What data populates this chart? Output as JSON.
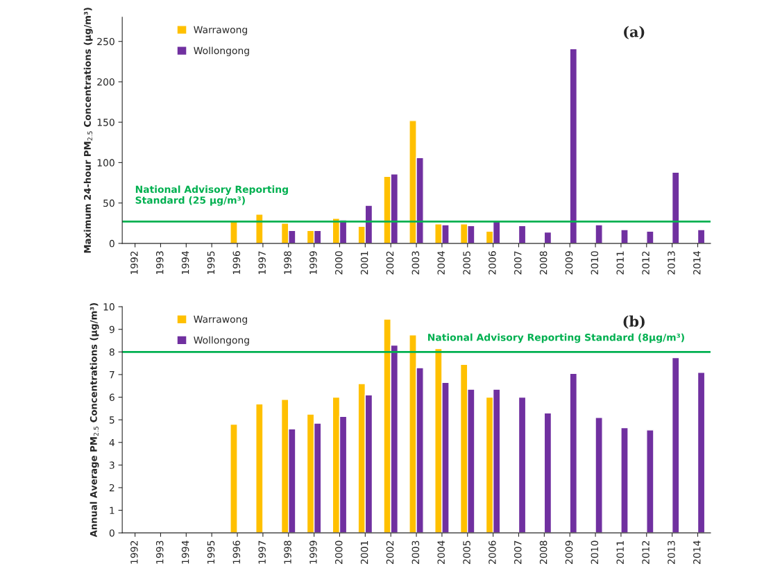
{
  "chart_data": [
    {
      "type": "bar",
      "ylabel": "Maximum 24-hour PM$_{2.5}$ Concentrations (μg/m³)",
      "categories": [
        "1992",
        "1993",
        "1994",
        "1995",
        "1996",
        "1997",
        "1998",
        "1999",
        "2000",
        "2001",
        "2002",
        "2003",
        "2004",
        "2005",
        "2006",
        "2007",
        "2008",
        "2009",
        "2010",
        "2011",
        "2012",
        "2013",
        "2014"
      ],
      "series": [
        {
          "name": "Warrawong",
          "color": "#ffc000",
          "values": [
            null,
            null,
            null,
            null,
            27,
            36,
            25,
            16,
            31,
            21,
            83,
            152,
            24,
            24,
            15,
            null,
            null,
            null,
            null,
            null,
            null,
            null,
            null
          ]
        },
        {
          "name": "Wollongong",
          "color": "#7030a0",
          "values": [
            null,
            null,
            null,
            null,
            null,
            null,
            16,
            16,
            29,
            47,
            86,
            106,
            23,
            22,
            27,
            22,
            14,
            241,
            23,
            17,
            15,
            88,
            17
          ]
        }
      ],
      "ylim": [
        0,
        280
      ],
      "yticks": [
        0,
        50,
        100,
        150,
        200,
        250
      ],
      "grid": false,
      "legend": "top left",
      "ref_lines": [
        {
          "axis": "y",
          "value": 27,
          "label": "National Advisory Reporting\nStandard (25 μg/m³)",
          "color": "#00b050"
        }
      ],
      "annotations": [
        "(a)"
      ]
    },
    {
      "type": "bar",
      "ylabel": "Annual Average PM$_{2.5}$ Concentrations (μg/m³)",
      "categories": [
        "1992",
        "1993",
        "1994",
        "1995",
        "1996",
        "1997",
        "1998",
        "1999",
        "2000",
        "2001",
        "2002",
        "2003",
        "2004",
        "2005",
        "2006",
        "2007",
        "2008",
        "2009",
        "2010",
        "2011",
        "2012",
        "2013",
        "2014"
      ],
      "series": [
        {
          "name": "Warrawong",
          "color": "#ffc000",
          "values": [
            null,
            null,
            null,
            null,
            4.8,
            5.7,
            5.9,
            5.25,
            6.0,
            6.6,
            9.45,
            8.75,
            8.15,
            7.45,
            6.0,
            null,
            null,
            null,
            null,
            null,
            null,
            null,
            null
          ]
        },
        {
          "name": "Wollongong",
          "color": "#7030a0",
          "values": [
            null,
            null,
            null,
            null,
            null,
            null,
            4.6,
            4.85,
            5.15,
            6.1,
            8.3,
            7.3,
            6.65,
            6.35,
            6.35,
            6.0,
            5.3,
            7.05,
            5.1,
            4.65,
            4.55,
            7.75,
            7.1
          ]
        }
      ],
      "ylim": [
        0,
        10
      ],
      "yticks": [
        0,
        1,
        2,
        3,
        4,
        5,
        6,
        7,
        8,
        9,
        10
      ],
      "grid": false,
      "legend": "top left",
      "ref_lines": [
        {
          "axis": "y",
          "value": 8,
          "label": "National Advisory Reporting Standard (8μg/m³)",
          "color": "#00b050"
        }
      ],
      "annotations": [
        "(b)"
      ]
    }
  ]
}
